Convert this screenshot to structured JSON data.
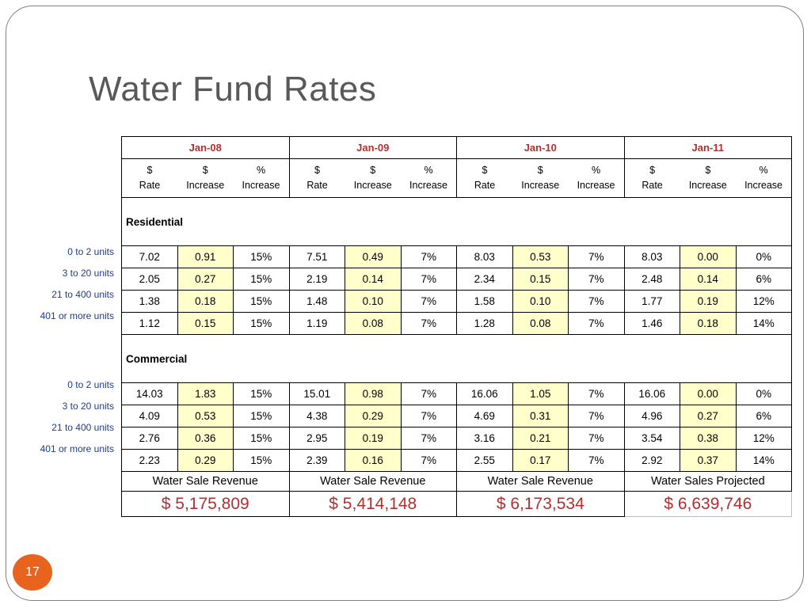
{
  "slide": {
    "title": "Water Fund Rates",
    "page_number": "17"
  },
  "table": {
    "periods": [
      "Jan-08",
      "Jan-09",
      "Jan-10",
      "Jan-11"
    ],
    "sub_headers": [
      {
        "line1": "$",
        "line2": "Rate"
      },
      {
        "line1": "$",
        "line2": "Increase"
      },
      {
        "line1": "%",
        "line2": "Increase"
      }
    ],
    "sections": [
      {
        "name": "Residential",
        "rows": [
          {
            "label": "0 to 2 units",
            "values": [
              "7.02",
              "0.91",
              "15%",
              "7.51",
              "0.49",
              "7%",
              "8.03",
              "0.53",
              "7%",
              "8.03",
              "0.00",
              "0%"
            ]
          },
          {
            "label": "3 to 20 units",
            "values": [
              "2.05",
              "0.27",
              "15%",
              "2.19",
              "0.14",
              "7%",
              "2.34",
              "0.15",
              "7%",
              "2.48",
              "0.14",
              "6%"
            ]
          },
          {
            "label": "21 to 400 units",
            "values": [
              "1.38",
              "0.18",
              "15%",
              "1.48",
              "0.10",
              "7%",
              "1.58",
              "0.10",
              "7%",
              "1.77",
              "0.19",
              "12%"
            ]
          },
          {
            "label": "401 or more units",
            "values": [
              "1.12",
              "0.15",
              "15%",
              "1.19",
              "0.08",
              "7%",
              "1.28",
              "0.08",
              "7%",
              "1.46",
              "0.18",
              "14%"
            ]
          }
        ]
      },
      {
        "name": "Commercial",
        "rows": [
          {
            "label": "0 to 2 units",
            "values": [
              "14.03",
              "1.83",
              "15%",
              "15.01",
              "0.98",
              "7%",
              "16.06",
              "1.05",
              "7%",
              "16.06",
              "0.00",
              "0%"
            ]
          },
          {
            "label": "3 to 20 units",
            "values": [
              "4.09",
              "0.53",
              "15%",
              "4.38",
              "0.29",
              "7%",
              "4.69",
              "0.31",
              "7%",
              "4.96",
              "0.27",
              "6%"
            ]
          },
          {
            "label": "21 to 400 units",
            "values": [
              "2.76",
              "0.36",
              "15%",
              "2.95",
              "0.19",
              "7%",
              "3.16",
              "0.21",
              "7%",
              "3.54",
              "0.38",
              "12%"
            ]
          },
          {
            "label": "401 or more units",
            "values": [
              "2.23",
              "0.29",
              "15%",
              "2.39",
              "0.16",
              "7%",
              "2.55",
              "0.17",
              "7%",
              "2.92",
              "0.37",
              "14%"
            ]
          }
        ]
      }
    ],
    "revenue_labels": [
      "Water Sale Revenue",
      "Water Sale Revenue",
      "Water Sale Revenue",
      "Water Sales Projected"
    ],
    "revenue_values": [
      "$ 5,175,809",
      "$ 5,414,148",
      "$ 6,173,534",
      "$ 6,639,746"
    ]
  },
  "colors": {
    "accent_red": "#b32e2e",
    "label_blue": "#1f3c88",
    "highlight_yellow": "#ffffcc",
    "page_badge_orange": "#e8641e"
  }
}
